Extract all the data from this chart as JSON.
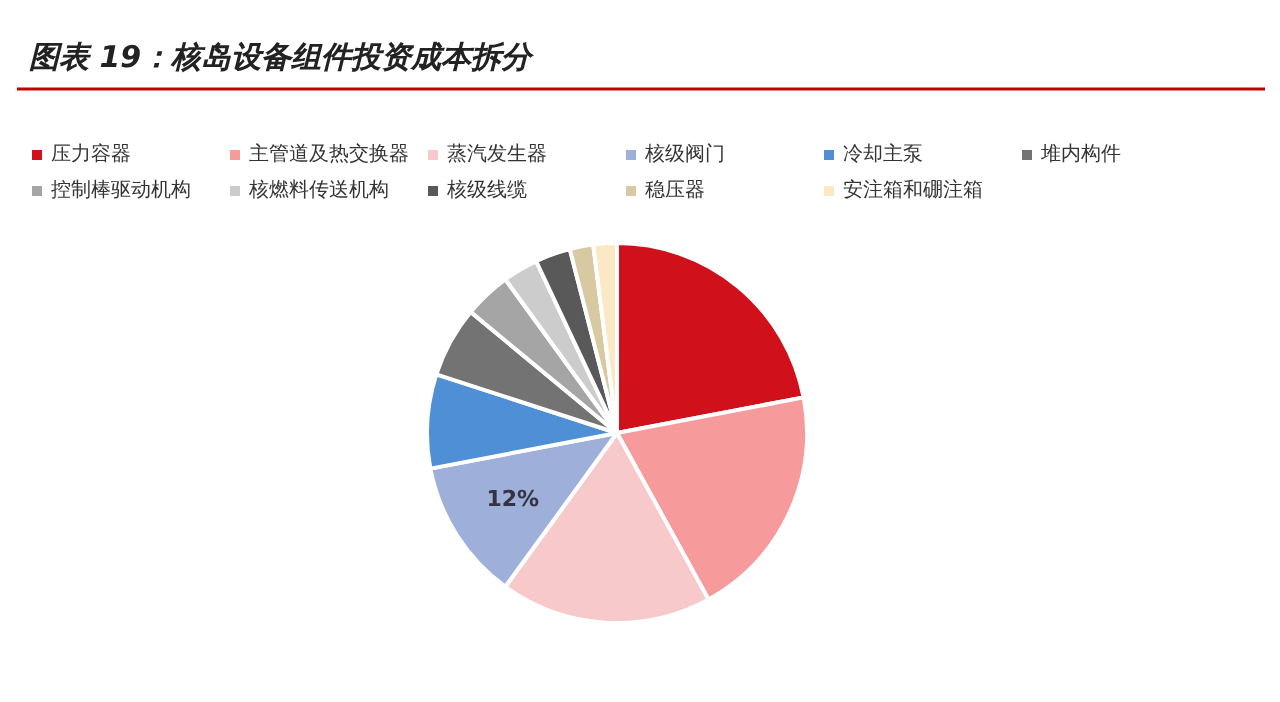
{
  "chart_data": {
    "type": "pie",
    "title": "图表 19：核岛设备组件投资成本拆分",
    "categories": [
      "压力容器",
      "主管道及热交换器",
      "蒸汽发生器",
      "核级阀门",
      "冷却主泵",
      "堆内构件",
      "控制棒驱动机构",
      "核燃料传送机构",
      "核级线缆",
      "稳压器",
      "安注箱和硼注箱"
    ],
    "values": [
      22,
      20,
      18,
      12,
      8,
      6,
      4,
      3,
      3,
      2,
      2
    ],
    "colors": [
      "#d0101a",
      "#f79a9b",
      "#f8c9cb",
      "#9eafd9",
      "#4f8fd6",
      "#737373",
      "#a5a5a5",
      "#cccccc",
      "#595959",
      "#d9c9a3",
      "#fbe9c6"
    ],
    "value_labels": [
      null,
      null,
      null,
      "12%",
      null,
      null,
      null,
      null,
      null,
      null,
      null
    ],
    "legend": "top"
  }
}
